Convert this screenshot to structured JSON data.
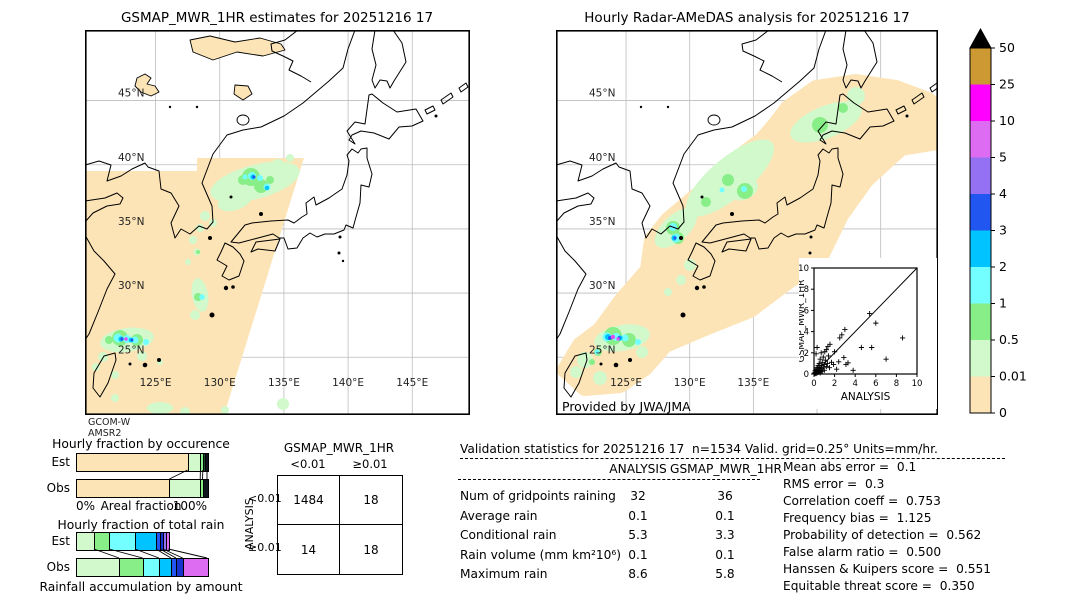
{
  "left_map": {
    "title": "GSMAP_MWR_1HR estimates for 20251216 17",
    "footer_lines": [
      "GCOM-W",
      "AMSR2"
    ],
    "lat_labels": [
      "45°N",
      "40°N",
      "35°N",
      "30°N",
      "25°N"
    ],
    "lon_labels": [
      "125°E",
      "130°E",
      "135°E",
      "140°E",
      "145°E"
    ]
  },
  "right_map": {
    "title": "Hourly Radar-AMeDAS analysis for 20251216 17",
    "credit": "Provided by JWA/JMA",
    "lat_labels": [
      "45°N",
      "40°N",
      "35°N",
      "30°N",
      "25°N"
    ],
    "lon_labels": [
      "125°E",
      "130°E",
      "135°E"
    ]
  },
  "colorbar": {
    "labels": [
      "50",
      "25",
      "10",
      "5",
      "4",
      "3",
      "2",
      "1",
      "0.5",
      "0.01",
      "0"
    ],
    "colors": [
      "#cc9933",
      "#ff00ff",
      "#dd6cf2",
      "#9371f2",
      "#2256f0",
      "#00c3ff",
      "#73ffff",
      "#88ee88",
      "#d2f9cc",
      "#fce4b6"
    ],
    "arrow_color": "#000000"
  },
  "chart_data": [
    {
      "id": "occurrence",
      "type": "bar",
      "title": "Hourly fraction by occurence",
      "xlabel": "Areal fraction",
      "x_min_label": "0%",
      "x_max_label": "100%",
      "rows": [
        {
          "label": "Est",
          "segments": [
            {
              "color": "#fce4b6",
              "pct": 85.2
            },
            {
              "color": "#d2f9cc",
              "pct": 9.8
            },
            {
              "color": "#88ee88",
              "pct": 1.8
            },
            {
              "color": "#184a2c",
              "pct": 1.4
            },
            {
              "color": "#10141c",
              "pct": 1.8
            }
          ]
        },
        {
          "label": "Obs",
          "segments": [
            {
              "color": "#fce4b6",
              "pct": 71.3
            },
            {
              "color": "#d2f9cc",
              "pct": 23.5
            },
            {
              "color": "#88ee88",
              "pct": 1.8
            },
            {
              "color": "#10141c",
              "pct": 3.4
            }
          ]
        }
      ],
      "connectors": [
        [
          85.2,
          71.3
        ],
        [
          95.0,
          94.8
        ],
        [
          96.8,
          96.6
        ],
        [
          100,
          100
        ]
      ]
    },
    {
      "id": "totalrain",
      "type": "bar",
      "title": "Hourly fraction of total rain",
      "caption": "Rainfall accumulation by amount",
      "rows": [
        {
          "label": "Est",
          "segments": [
            {
              "color": "#d2f9cc",
              "pct": 13.7
            },
            {
              "color": "#88ee88",
              "pct": 11.5
            },
            {
              "color": "#73ffff",
              "pct": 19.8
            },
            {
              "color": "#00c3ff",
              "pct": 16.0
            },
            {
              "color": "#2256f0",
              "pct": 3.1
            },
            {
              "color": "#1834cf",
              "pct": 2.3
            },
            {
              "color": "#9371f2",
              "pct": 2.3
            },
            {
              "color": "#dd6cf2",
              "pct": 1.9
            }
          ]
        },
        {
          "label": "Obs",
          "segments": [
            {
              "color": "#d2f9cc",
              "pct": 32.8
            },
            {
              "color": "#88ee88",
              "pct": 18.1
            },
            {
              "color": "#73ffff",
              "pct": 12.4
            },
            {
              "color": "#00c3ff",
              "pct": 9.2
            },
            {
              "color": "#2256f0",
              "pct": 3.8
            },
            {
              "color": "#1834cf",
              "pct": 5.1
            },
            {
              "color": "#dd6cf2",
              "pct": 18.6
            }
          ]
        }
      ],
      "connectors": [
        [
          13.7,
          32.8
        ],
        [
          25.2,
          50.9
        ],
        [
          45.0,
          63.3
        ],
        [
          61.0,
          72.5
        ],
        [
          64.1,
          76.3
        ],
        [
          66.4,
          81.4
        ],
        [
          70.6,
          100
        ]
      ]
    },
    {
      "id": "contingency",
      "type": "table",
      "title": "GSMAP_MWR_1HR",
      "col_labels": [
        "<0.01",
        "≥0.01"
      ],
      "row_axis_label": "ANALYSIS",
      "row_labels": [
        "<0.01",
        "≥0.01"
      ],
      "cells": [
        [
          "1484",
          "18"
        ],
        [
          "14",
          "18"
        ]
      ]
    },
    {
      "id": "inset-scatter",
      "type": "scatter",
      "xlabel": "ANALYSIS",
      "ylabel": "GSMAP_MWR_1HR",
      "xlim": [
        0,
        10
      ],
      "ylim": [
        0,
        10
      ],
      "ticks": [
        0,
        2,
        4,
        6,
        8,
        10
      ],
      "diagonal": true,
      "points": [
        [
          0.05,
          0.1
        ],
        [
          0.1,
          0.05
        ],
        [
          0.1,
          0.3
        ],
        [
          0.15,
          0.15
        ],
        [
          0.2,
          0.05
        ],
        [
          0.2,
          0.45
        ],
        [
          0.25,
          0.2
        ],
        [
          0.3,
          0.1
        ],
        [
          0.3,
          0.6
        ],
        [
          0.3,
          2.5
        ],
        [
          0.2,
          1.9
        ],
        [
          0.35,
          0.3
        ],
        [
          0.4,
          0.15
        ],
        [
          0.4,
          0.8
        ],
        [
          0.45,
          0.45
        ],
        [
          0.5,
          0.2
        ],
        [
          0.5,
          1.0
        ],
        [
          0.55,
          0.65
        ],
        [
          0.6,
          0.1
        ],
        [
          0.6,
          1.4
        ],
        [
          0.65,
          0.35
        ],
        [
          0.7,
          0.8
        ],
        [
          0.7,
          2.0
        ],
        [
          0.75,
          0.5
        ],
        [
          0.8,
          0.25
        ],
        [
          0.8,
          1.1
        ],
        [
          0.9,
          0.6
        ],
        [
          0.9,
          1.6
        ],
        [
          1.0,
          0.35
        ],
        [
          1.0,
          0.9
        ],
        [
          1.05,
          2.1
        ],
        [
          1.1,
          1.3
        ],
        [
          1.2,
          0.7
        ],
        [
          1.2,
          2.3
        ],
        [
          1.3,
          1.0
        ],
        [
          1.35,
          2.6
        ],
        [
          1.4,
          1.7
        ],
        [
          1.5,
          0.6
        ],
        [
          1.55,
          2.8
        ],
        [
          1.7,
          1.1
        ],
        [
          1.9,
          0.9
        ],
        [
          2.0,
          2.1
        ],
        [
          2.2,
          0.45
        ],
        [
          2.4,
          1.15
        ],
        [
          2.5,
          3.4
        ],
        [
          2.7,
          3.7
        ],
        [
          2.9,
          1.55
        ],
        [
          3.0,
          4.2
        ],
        [
          3.1,
          0.9
        ],
        [
          3.3,
          1.05
        ],
        [
          3.8,
          0.35
        ],
        [
          4.6,
          2.5
        ],
        [
          5.4,
          5.7
        ],
        [
          5.6,
          2.5
        ],
        [
          6.0,
          4.8
        ],
        [
          7.0,
          1.4
        ],
        [
          8.6,
          3.4
        ]
      ]
    },
    {
      "id": "validation-stats",
      "type": "table",
      "title": "Validation statistics for 20251216 17  n=1534 Valid. grid=0.25° Units=mm/hr.",
      "columns": [
        "ANALYSIS",
        "GSMAP_MWR_1HR"
      ],
      "rows": [
        {
          "label": "Num of gridpoints raining",
          "analysis": "32",
          "gsmap": "36"
        },
        {
          "label": "Average rain",
          "analysis": "0.1",
          "gsmap": "0.1"
        },
        {
          "label": "Conditional rain",
          "analysis": "5.3",
          "gsmap": "3.3"
        },
        {
          "label": "Rain volume (mm km²10⁶)",
          "analysis": "0.1",
          "gsmap": "0.1"
        },
        {
          "label": "Maximum rain",
          "analysis": "8.6",
          "gsmap": "5.8"
        }
      ],
      "metrics": [
        {
          "label": "Mean abs error",
          "value": "0.1"
        },
        {
          "label": "RMS error",
          "value": "0.3"
        },
        {
          "label": "Correlation coeff",
          "value": "0.753"
        },
        {
          "label": "Frequency bias",
          "value": "1.125"
        },
        {
          "label": "Probability of detection",
          "value": "0.562"
        },
        {
          "label": "False alarm ratio",
          "value": "0.500"
        },
        {
          "label": "Hanssen & Kuipers score",
          "value": "0.551"
        },
        {
          "label": "Equitable threat score",
          "value": "0.350"
        }
      ]
    }
  ]
}
